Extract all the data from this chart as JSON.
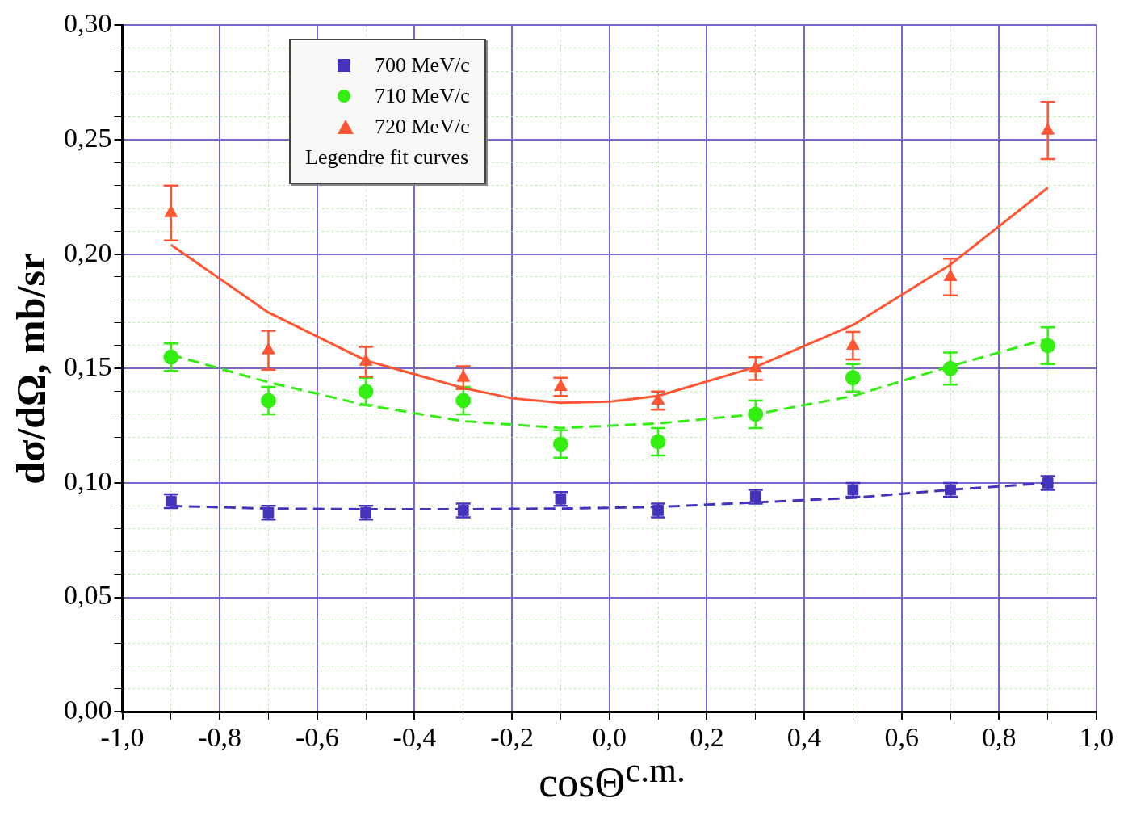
{
  "chart_data": {
    "type": "scatter",
    "xlabel": "cosΘ$^{c.m.}$",
    "ylabel": "dσ/dΩ, mb/sr",
    "xlim": [
      -1,
      1
    ],
    "xticks": [
      {
        "value": -1,
        "label": "-1,0"
      },
      {
        "value": -0.9,
        "label": null
      },
      {
        "value": -0.8,
        "label": "-0,8"
      },
      {
        "value": -0.7,
        "label": null
      },
      {
        "value": -0.6,
        "label": "-0,6"
      },
      {
        "value": -0.5,
        "label": null
      },
      {
        "value": -0.4,
        "label": "-0,4"
      },
      {
        "value": -0.3,
        "label": null
      },
      {
        "value": -0.2,
        "label": "-0,2"
      },
      {
        "value": -0.1,
        "label": null
      },
      {
        "value": 0,
        "label": "0,0"
      },
      {
        "value": 0.1,
        "label": null
      },
      {
        "value": 0.2,
        "label": "0,2"
      },
      {
        "value": 0.3,
        "label": null
      },
      {
        "value": 0.4,
        "label": "0,4"
      },
      {
        "value": 0.5,
        "label": null
      },
      {
        "value": 0.6,
        "label": "0,6"
      },
      {
        "value": 0.7,
        "label": null
      },
      {
        "value": 0.8,
        "label": "0,8"
      },
      {
        "value": 0.9,
        "label": null
      },
      {
        "value": 1,
        "label": "1,0"
      }
    ],
    "ylim": [
      0,
      0.3
    ],
    "yticks": [
      {
        "value": 0,
        "label": "0,00"
      },
      {
        "value": 0.01,
        "label": null
      },
      {
        "value": 0.02,
        "label": null
      },
      {
        "value": 0.03,
        "label": null
      },
      {
        "value": 0.04,
        "label": null
      },
      {
        "value": 0.05,
        "label": "0,05"
      },
      {
        "value": 0.06,
        "label": null
      },
      {
        "value": 0.07,
        "label": null
      },
      {
        "value": 0.08,
        "label": null
      },
      {
        "value": 0.09,
        "label": null
      },
      {
        "value": 0.1,
        "label": "0,10"
      },
      {
        "value": 0.11,
        "label": null
      },
      {
        "value": 0.12,
        "label": null
      },
      {
        "value": 0.13,
        "label": null
      },
      {
        "value": 0.14,
        "label": null
      },
      {
        "value": 0.15,
        "label": "0,15"
      },
      {
        "value": 0.16,
        "label": null
      },
      {
        "value": 0.17,
        "label": null
      },
      {
        "value": 0.18,
        "label": null
      },
      {
        "value": 0.19,
        "label": null
      },
      {
        "value": 0.2,
        "label": "0,20"
      },
      {
        "value": 0.21,
        "label": null
      },
      {
        "value": 0.22,
        "label": null
      },
      {
        "value": 0.23,
        "label": null
      },
      {
        "value": 0.24,
        "label": null
      },
      {
        "value": 0.25,
        "label": "0,25"
      },
      {
        "value": 0.26,
        "label": null
      },
      {
        "value": 0.27,
        "label": null
      },
      {
        "value": 0.28,
        "label": null
      },
      {
        "value": 0.29,
        "label": null
      },
      {
        "value": 0.3,
        "label": "0,30"
      }
    ],
    "grid": true,
    "legend": "top left",
    "annotations": [
      "Legendre fit curves"
    ],
    "x": [
      -0.9,
      -0.7,
      -0.5,
      -0.3,
      -0.1,
      0.1,
      0.3,
      0.5,
      0.7,
      0.9
    ],
    "series": [
      {
        "name": "700 MeV/c",
        "color": "#4433bb",
        "marker": "square",
        "values": [
          0.092,
          0.087,
          0.087,
          0.088,
          0.093,
          0.088,
          0.094,
          0.097,
          0.097,
          0.1
        ],
        "errors": [
          0.003,
          0.003,
          0.003,
          0.003,
          0.003,
          0.003,
          0.003,
          0.003,
          0.003,
          0.003
        ]
      },
      {
        "name": "710 MeV/c",
        "color": "#33ee11",
        "marker": "circle",
        "values": [
          0.155,
          0.136,
          0.14,
          0.136,
          0.117,
          0.118,
          0.13,
          0.146,
          0.15,
          0.16
        ],
        "errors": [
          0.006,
          0.006,
          0.006,
          0.006,
          0.006,
          0.006,
          0.006,
          0.006,
          0.007,
          0.008
        ]
      },
      {
        "name": "720 MeV/c",
        "color": "#ff5533",
        "marker": "triangle",
        "values": [
          0.218,
          0.158,
          0.153,
          0.146,
          0.142,
          0.136,
          0.15,
          0.16,
          0.19,
          0.254
        ],
        "errors": [
          0.012,
          0.0085,
          0.0065,
          0.005,
          0.004,
          0.004,
          0.005,
          0.006,
          0.008,
          0.0125
        ]
      },
      {
        "type": "line",
        "color": "#4433bb",
        "marker": "none",
        "line_style": "dashed",
        "x": [
          -0.9,
          -0.7,
          -0.5,
          -0.3,
          -0.1,
          0.1,
          0.3,
          0.5,
          0.7,
          0.9
        ],
        "values": [
          0.09,
          0.0888,
          0.0885,
          0.0885,
          0.0888,
          0.0895,
          0.0915,
          0.0935,
          0.097,
          0.1
        ]
      },
      {
        "type": "line",
        "color": "#33ee11",
        "marker": "none",
        "line_style": "dashed",
        "x": [
          -0.9,
          -0.7,
          -0.5,
          -0.3,
          -0.1,
          0.1,
          0.3,
          0.5,
          0.7,
          0.9
        ],
        "values": [
          0.156,
          0.144,
          0.134,
          0.127,
          0.124,
          0.126,
          0.13,
          0.138,
          0.151,
          0.163
        ]
      },
      {
        "type": "line",
        "color": "#ff5533",
        "marker": "none",
        "line_style": "solid",
        "x": [
          -0.9,
          -0.7,
          -0.5,
          -0.3,
          -0.2,
          -0.1,
          0,
          0.1,
          0.3,
          0.5,
          0.7,
          0.9
        ],
        "values": [
          0.204,
          0.1745,
          0.1535,
          0.1415,
          0.137,
          0.135,
          0.1355,
          0.138,
          0.1507,
          0.169,
          0.1954,
          0.229
        ]
      }
    ]
  }
}
